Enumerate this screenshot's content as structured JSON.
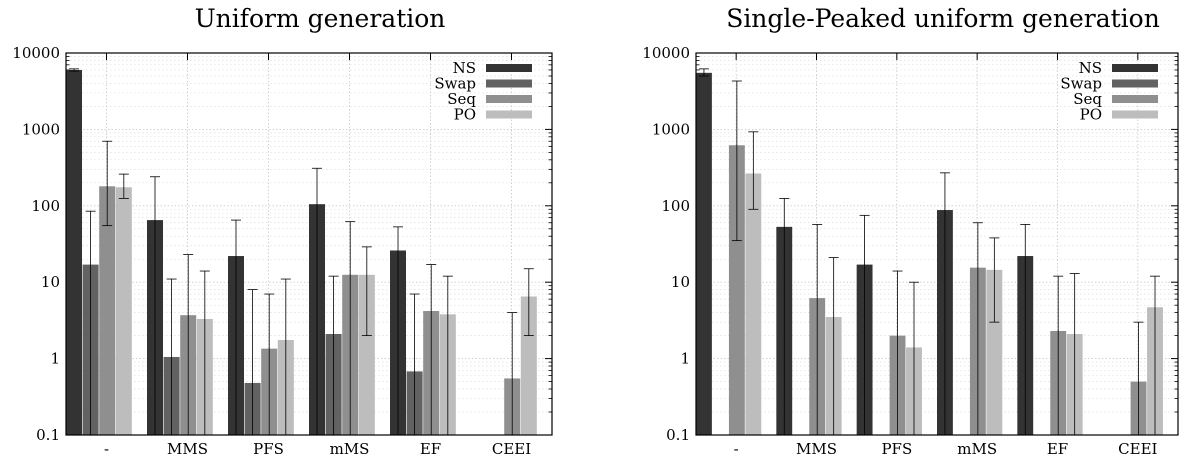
{
  "chart_data": [
    {
      "type": "bar",
      "title": "Uniform generation",
      "xlabel": "",
      "ylabel": "",
      "yscale": "log",
      "ylim": [
        0.1,
        10000
      ],
      "yticks": [
        "0.1",
        "1",
        "10",
        "100",
        "1000",
        "10000"
      ],
      "grid": true,
      "legend_position": "top-right",
      "categories": [
        "-",
        "MMS",
        "PFS",
        "mMS",
        "EF",
        "CEEI"
      ],
      "series": [
        {
          "name": "NS",
          "color": "#333333",
          "values": [
            6000,
            65,
            22,
            105,
            26,
            null
          ],
          "err_low": [
            5800,
            0.1,
            0.1,
            0.1,
            0.1,
            null
          ],
          "err_high": [
            6200,
            240,
            65,
            310,
            53,
            null
          ]
        },
        {
          "name": "Swap",
          "color": "#626262",
          "values": [
            17,
            1.05,
            0.48,
            2.1,
            0.68,
            null
          ],
          "err_low": [
            0.1,
            0.1,
            0.1,
            0.1,
            0.1,
            null
          ],
          "err_high": [
            85,
            11,
            8,
            12,
            7,
            null
          ]
        },
        {
          "name": "Seq",
          "color": "#8f8f8f",
          "values": [
            180,
            3.7,
            1.35,
            12.5,
            4.2,
            0.55
          ],
          "err_low": [
            55,
            0.1,
            0.1,
            0.1,
            0.1,
            0.1
          ],
          "err_high": [
            700,
            23,
            7,
            62,
            17,
            4
          ]
        },
        {
          "name": "PO",
          "color": "#bdbdbd",
          "values": [
            175,
            3.3,
            1.75,
            12.5,
            3.8,
            6.5
          ],
          "err_low": [
            125,
            0.1,
            0.1,
            2,
            0.1,
            2
          ],
          "err_high": [
            260,
            14,
            11,
            29,
            12,
            15
          ]
        }
      ]
    },
    {
      "type": "bar",
      "title": "Single-Peaked uniform generation",
      "xlabel": "",
      "ylabel": "",
      "yscale": "log",
      "ylim": [
        0.1,
        10000
      ],
      "yticks": [
        "0.1",
        "1",
        "10",
        "100",
        "1000",
        "10000"
      ],
      "grid": true,
      "legend_position": "top-right",
      "categories": [
        "-",
        "MMS",
        "PFS",
        "mMS",
        "EF",
        "CEEI"
      ],
      "series": [
        {
          "name": "NS",
          "color": "#333333",
          "values": [
            5500,
            53,
            17,
            88,
            22,
            null
          ],
          "err_low": [
            5000,
            0.1,
            0.1,
            0.1,
            0.1,
            null
          ],
          "err_high": [
            6200,
            125,
            75,
            270,
            57,
            null
          ]
        },
        {
          "name": "Swap",
          "color": "#626262",
          "values": [
            null,
            null,
            null,
            null,
            null,
            null
          ],
          "err_low": [
            null,
            null,
            null,
            null,
            null,
            null
          ],
          "err_high": [
            null,
            null,
            null,
            null,
            null,
            null
          ]
        },
        {
          "name": "Seq",
          "color": "#8f8f8f",
          "values": [
            620,
            6.2,
            2,
            15.5,
            2.3,
            0.5
          ],
          "err_low": [
            35,
            0.1,
            0.1,
            0.1,
            0.1,
            0.1
          ],
          "err_high": [
            4300,
            57,
            14,
            60,
            12,
            3
          ]
        },
        {
          "name": "PO",
          "color": "#bdbdbd",
          "values": [
            265,
            3.5,
            1.4,
            14.5,
            2.1,
            4.7
          ],
          "err_low": [
            90,
            0.1,
            0.1,
            3,
            0.1,
            0.1
          ],
          "err_high": [
            930,
            21,
            10,
            38,
            13,
            12
          ]
        }
      ]
    }
  ]
}
